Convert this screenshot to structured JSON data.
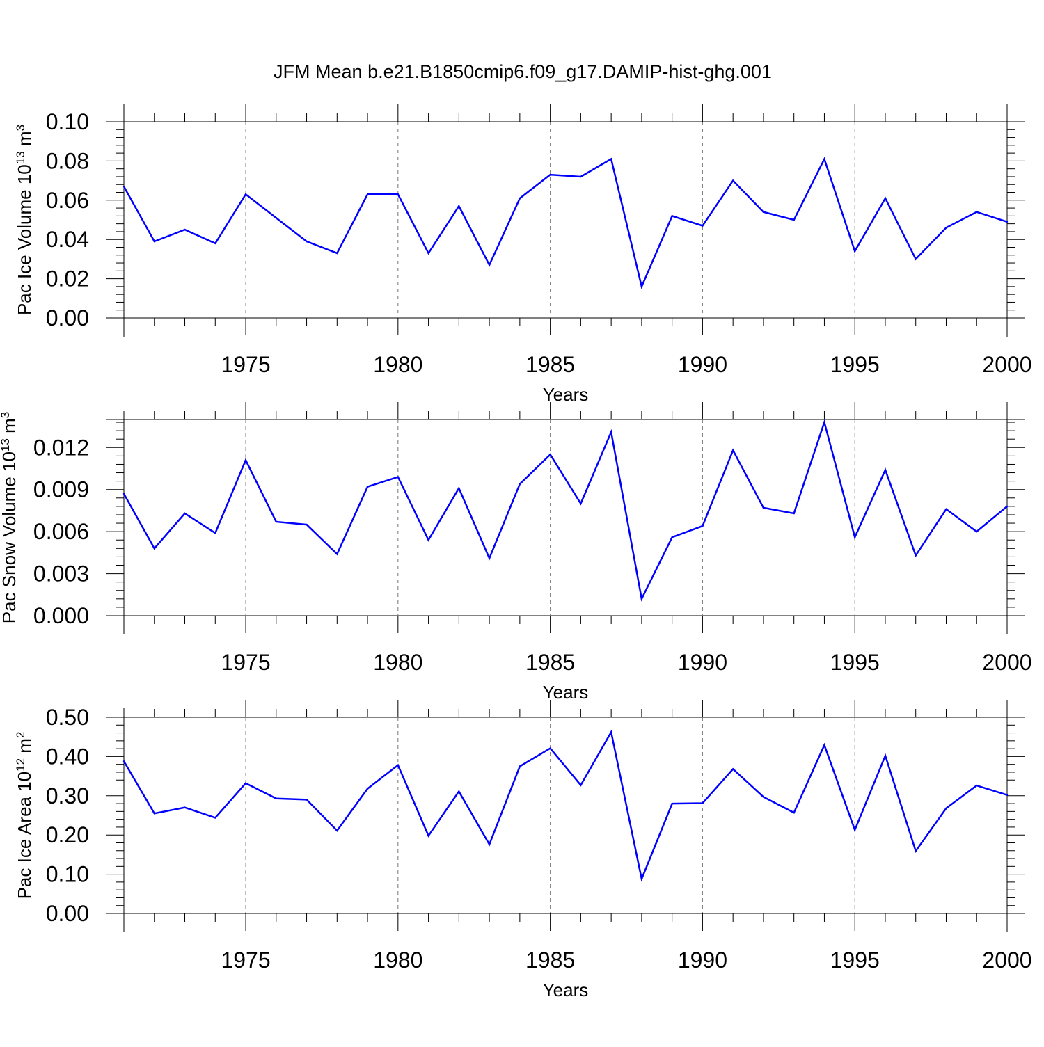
{
  "title": "JFM Mean b.e21.B1850cmip6.f09_g17.DAMIP-hist-ghg.001",
  "line_color": "#0000ff",
  "chart_data": [
    {
      "type": "line",
      "name": "ice-volume",
      "ylabel_main": "Pac Ice Volume 10",
      "ylabel_exp": "13",
      "ylabel_unit": "m",
      "ylabel_unit_exp": "3",
      "xlabel": "Years",
      "xlim": [
        1971,
        2000
      ],
      "ylim": [
        0,
        0.1
      ],
      "xticks": [
        1975,
        1980,
        1985,
        1990,
        1995,
        2000
      ],
      "yticks": [
        0,
        0.02,
        0.04,
        0.06,
        0.08,
        0.1
      ],
      "ytick_labels": [
        "0.00",
        "0.02",
        "0.04",
        "0.06",
        "0.08",
        "0.10"
      ],
      "x": [
        1971,
        1972,
        1973,
        1974,
        1975,
        1976,
        1977,
        1978,
        1979,
        1980,
        1981,
        1982,
        1983,
        1984,
        1985,
        1986,
        1987,
        1988,
        1989,
        1990,
        1991,
        1992,
        1993,
        1994,
        1995,
        1996,
        1997,
        1998,
        1999,
        2000
      ],
      "values": [
        0.067,
        0.039,
        0.045,
        0.038,
        0.063,
        0.051,
        0.039,
        0.033,
        0.063,
        0.063,
        0.033,
        0.057,
        0.027,
        0.061,
        0.073,
        0.072,
        0.081,
        0.016,
        0.052,
        0.047,
        0.07,
        0.054,
        0.05,
        0.081,
        0.034,
        0.061,
        0.03,
        0.046,
        0.054,
        0.049
      ]
    },
    {
      "type": "line",
      "name": "snow-volume",
      "ylabel_main": "Pac Snow Volume 10",
      "ylabel_exp": "13",
      "ylabel_unit": "m",
      "ylabel_unit_exp": "3",
      "xlabel": "Years",
      "xlim": [
        1971,
        2000
      ],
      "ylim": [
        0,
        0.014
      ],
      "xticks": [
        1975,
        1980,
        1985,
        1990,
        1995,
        2000
      ],
      "yticks": [
        0,
        0.003,
        0.006,
        0.009,
        0.012
      ],
      "ytick_labels": [
        "0.000",
        "0.003",
        "0.006",
        "0.009",
        "0.012"
      ],
      "x": [
        1971,
        1972,
        1973,
        1974,
        1975,
        1976,
        1977,
        1978,
        1979,
        1980,
        1981,
        1982,
        1983,
        1984,
        1985,
        1986,
        1987,
        1988,
        1989,
        1990,
        1991,
        1992,
        1993,
        1994,
        1995,
        1996,
        1997,
        1998,
        1999,
        2000
      ],
      "values": [
        0.0087,
        0.0048,
        0.0073,
        0.0059,
        0.0111,
        0.0067,
        0.0065,
        0.0044,
        0.0092,
        0.0099,
        0.0054,
        0.0091,
        0.0041,
        0.0094,
        0.0115,
        0.008,
        0.0131,
        0.0012,
        0.0056,
        0.0064,
        0.0118,
        0.0077,
        0.0073,
        0.0138,
        0.0056,
        0.0104,
        0.0043,
        0.0076,
        0.006,
        0.0078
      ]
    },
    {
      "type": "line",
      "name": "ice-area",
      "ylabel_main": "Pac Ice Area 10",
      "ylabel_exp": "12",
      "ylabel_unit": "m",
      "ylabel_unit_exp": "2",
      "xlabel": "Years",
      "xlim": [
        1971,
        2000
      ],
      "ylim": [
        0,
        0.5
      ],
      "xticks": [
        1975,
        1980,
        1985,
        1990,
        1995,
        2000
      ],
      "yticks": [
        0,
        0.1,
        0.2,
        0.3,
        0.4,
        0.5
      ],
      "ytick_labels": [
        "0.00",
        "0.10",
        "0.20",
        "0.30",
        "0.40",
        "0.50"
      ],
      "x": [
        1971,
        1972,
        1973,
        1974,
        1975,
        1976,
        1977,
        1978,
        1979,
        1980,
        1981,
        1982,
        1983,
        1984,
        1985,
        1986,
        1987,
        1988,
        1989,
        1990,
        1991,
        1992,
        1993,
        1994,
        1995,
        1996,
        1997,
        1998,
        1999,
        2000
      ],
      "values": [
        0.388,
        0.255,
        0.27,
        0.244,
        0.332,
        0.293,
        0.29,
        0.211,
        0.318,
        0.378,
        0.198,
        0.311,
        0.176,
        0.375,
        0.421,
        0.327,
        0.462,
        0.088,
        0.28,
        0.281,
        0.368,
        0.297,
        0.257,
        0.429,
        0.213,
        0.402,
        0.159,
        0.268,
        0.326,
        0.302
      ]
    }
  ]
}
